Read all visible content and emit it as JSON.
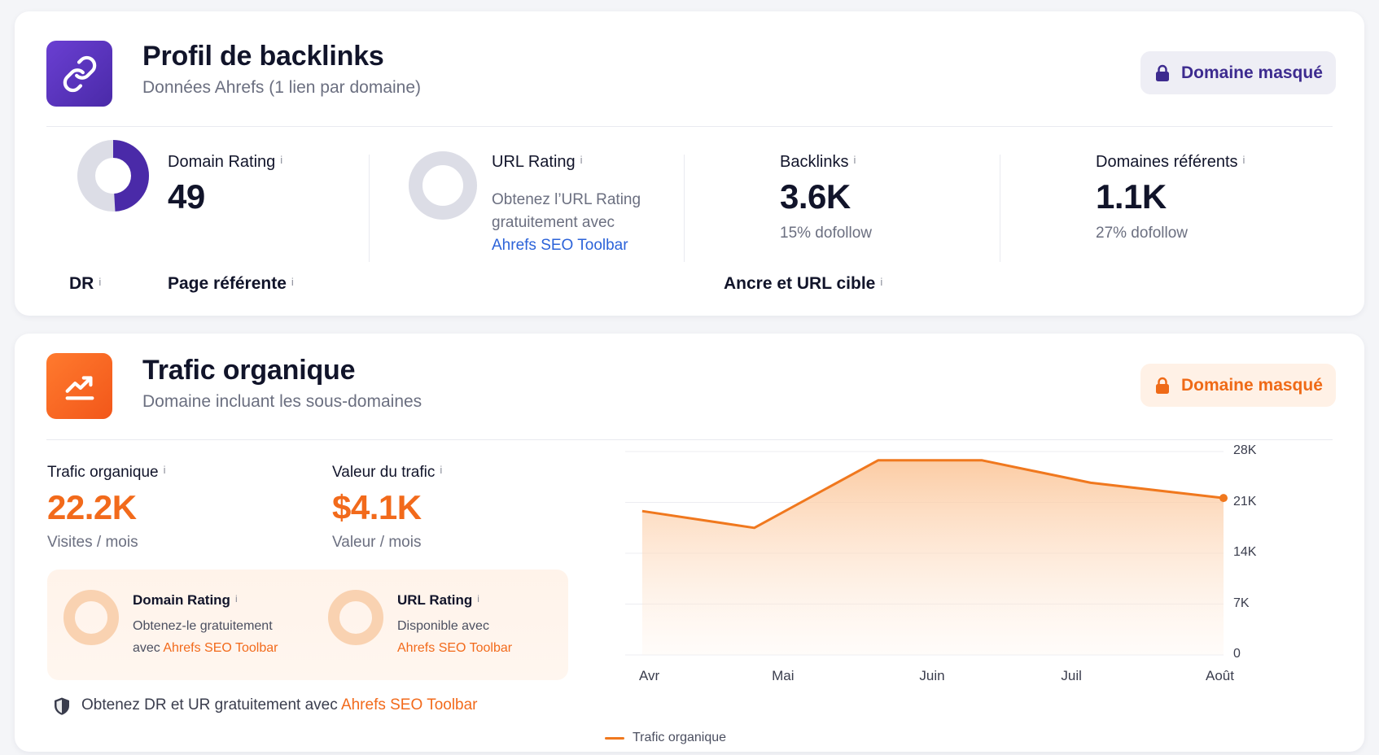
{
  "backlinks": {
    "title": "Profil de backlinks",
    "subtitle": "Données Ahrefs (1 lien par domaine)",
    "masked_label": "Domaine masqué",
    "domain_rating": {
      "label": "Domain Rating",
      "value": "49",
      "fill_fraction": 0.49
    },
    "url_rating": {
      "label": "URL Rating",
      "text_line1": "Obtenez l’URL Rating",
      "text_line2": "gratuitement avec",
      "link": "Ahrefs SEO Toolbar"
    },
    "backlinks_stat": {
      "label": "Backlinks",
      "value": "3.6K",
      "sub": "15% dofollow"
    },
    "ref_domains": {
      "label": "Domaines référents",
      "value": "1.1K",
      "sub": "27% dofollow"
    },
    "columns": {
      "dr": "DR",
      "ref_page": "Page référente",
      "anchor": "Ancre et URL cible"
    },
    "info_glyph": "i"
  },
  "traffic": {
    "title": "Trafic organique",
    "subtitle": "Domaine incluant les sous-domaines",
    "masked_label": "Domaine masqué",
    "organic": {
      "label": "Trafic organique",
      "value": "22.2K",
      "sub": "Visites / mois"
    },
    "value": {
      "label": "Valeur du trafic",
      "value": "$4.1K",
      "sub": "Valeur / mois"
    },
    "promo_dr": {
      "label": "Domain Rating",
      "line1": "Obtenez-le gratuitement",
      "line2_prefix": "avec ",
      "link": "Ahrefs SEO Toolbar"
    },
    "promo_ur": {
      "label": "URL Rating",
      "line1": "Disponible avec",
      "link": "Ahrefs SEO Toolbar"
    },
    "footer_text": "Obtenez DR et UR gratuitement avec ",
    "footer_link": "Ahrefs SEO Toolbar"
  },
  "chart_data": {
    "type": "area",
    "x": [
      "Avr",
      "Mai",
      "Juin",
      "Juil",
      "Août"
    ],
    "series": [
      {
        "name": "Trafic organique",
        "values": [
          {
            "x": "Avr",
            "y": 19800
          },
          {
            "x": "Mai",
            "y": 17500
          },
          {
            "x": "Juin",
            "y": 26800
          },
          {
            "x": "Juin",
            "y": 26800
          },
          {
            "x": "Juil",
            "y": 23700
          },
          {
            "x": "Août",
            "y": 21600
          }
        ]
      }
    ],
    "point_positions": [
      0.015,
      0.205,
      0.415,
      0.59,
      0.775,
      1.0
    ],
    "y_ticks": [
      "0",
      "7K",
      "14K",
      "21K",
      "28K"
    ],
    "ylim": [
      0,
      28000
    ],
    "grid": true,
    "legend": "bottom-left",
    "color": "#f0781e"
  },
  "colors": {
    "purple": "#4a2aa8",
    "orange": "#f26a1b",
    "link_blue": "#2c63d9"
  }
}
